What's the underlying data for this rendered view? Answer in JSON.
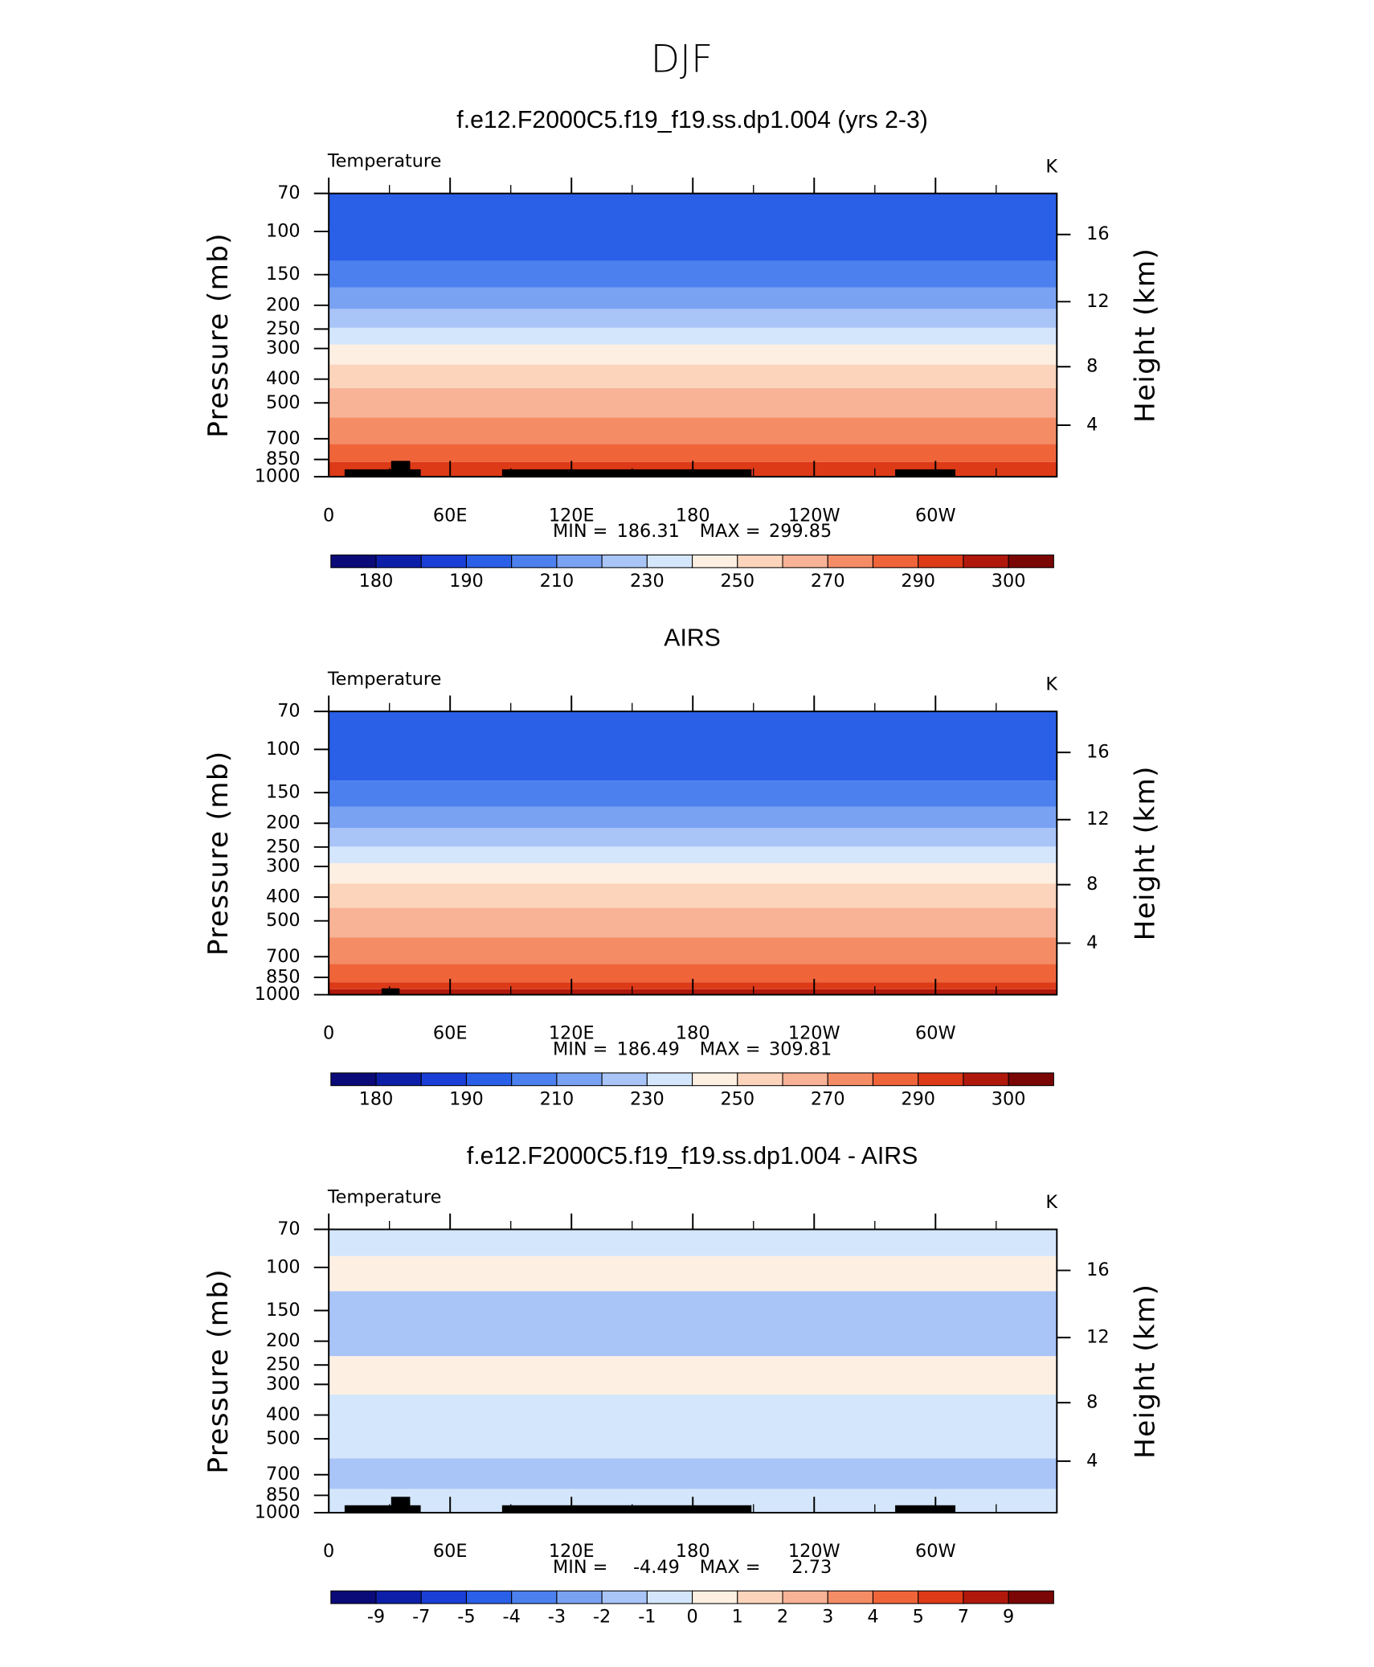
{
  "title": "DJF",
  "chart_data": [
    {
      "type": "contour",
      "title": "f.e12.F2000C5.f19_f19.ss.dp1.004 (yrs 2-3)",
      "label": "Temperature",
      "units": "K",
      "ylabel": "Pressure (mb)",
      "y2label": "Height (km)",
      "xlim": [
        0,
        360
      ],
      "xticks": [
        0,
        {
          "value": 60,
          "label": "60E"
        },
        {
          "value": 120,
          "label": "120E"
        },
        180,
        {
          "value": 240,
          "label": "120W"
        },
        {
          "value": 300,
          "label": "60W"
        }
      ],
      "ylim": [
        1000,
        70
      ],
      "log_y": true,
      "yticks": [
        70,
        100,
        150,
        200,
        250,
        300,
        400,
        500,
        700,
        850,
        1000
      ],
      "y2ticks": [
        4,
        8,
        12,
        16
      ],
      "min_label": "MIN =",
      "min": 186.31,
      "max_label": "MAX =",
      "max": 299.85,
      "colorbar_levels": [
        180,
        190,
        210,
        230,
        250,
        270,
        290,
        300
      ],
      "colorbar_colors": [
        "#0a0a78",
        "#0d1fa8",
        "#1a3fd6",
        "#2a5fe8",
        "#4c80ee",
        "#7aa2f3",
        "#a9c4f7",
        "#d4e6fb",
        "#fdf0e2",
        "#fbd4bb",
        "#f8b295",
        "#f48c66",
        "#f0643a",
        "#dd3a18",
        "#b0180c",
        "#7a0606"
      ],
      "bands": {
        "tops": [
          870,
          735,
          574,
          435,
          349,
          289,
          247,
          207,
          169,
          132,
          70
        ],
        "colors": [
          "#dd3a18",
          "#f0643a",
          "#f48c66",
          "#f8b295",
          "#fbd4bb",
          "#fdf0e2",
          "#d4e6fb",
          "#a9c4f7",
          "#7aa2f3",
          "#4c80ee",
          "#2a5fe8"
        ]
      }
    },
    {
      "type": "contour",
      "title": "AIRS",
      "label": "Temperature",
      "units": "K",
      "ylabel": "Pressure (mb)",
      "y2label": "Height (km)",
      "xlim": [
        0,
        360
      ],
      "xticks": [
        0,
        {
          "value": 60,
          "label": "60E"
        },
        {
          "value": 120,
          "label": "120E"
        },
        180,
        {
          "value": 240,
          "label": "120W"
        },
        {
          "value": 300,
          "label": "60W"
        }
      ],
      "ylim": [
        1000,
        70
      ],
      "log_y": true,
      "yticks": [
        70,
        100,
        150,
        200,
        250,
        300,
        400,
        500,
        700,
        850,
        1000
      ],
      "y2ticks": [
        4,
        8,
        12,
        16
      ],
      "min_label": "MIN =",
      "min": 186.49,
      "max_label": "MAX =",
      "max": 309.81,
      "colorbar_levels": [
        180,
        190,
        210,
        230,
        250,
        270,
        290,
        300
      ],
      "colorbar_colors": [
        "#0a0a78",
        "#0d1fa8",
        "#1a3fd6",
        "#2a5fe8",
        "#4c80ee",
        "#7aa2f3",
        "#a9c4f7",
        "#d4e6fb",
        "#fdf0e2",
        "#fbd4bb",
        "#f8b295",
        "#f48c66",
        "#f0643a",
        "#dd3a18",
        "#b0180c",
        "#7a0606"
      ],
      "bands": {
        "tops": [
          950,
          890,
          750,
          585,
          442,
          352,
          291,
          249,
          209,
          171,
          134,
          70
        ],
        "colors": [
          "#b0180c",
          "#dd3a18",
          "#f0643a",
          "#f48c66",
          "#f8b295",
          "#fbd4bb",
          "#fdf0e2",
          "#d4e6fb",
          "#a9c4f7",
          "#7aa2f3",
          "#4c80ee",
          "#2a5fe8"
        ]
      }
    },
    {
      "type": "contour",
      "title": "f.e12.F2000C5.f19_f19.ss.dp1.004 - AIRS",
      "label": "Temperature",
      "units": "K",
      "ylabel": "Pressure (mb)",
      "y2label": "Height (km)",
      "xlim": [
        0,
        360
      ],
      "xticks": [
        0,
        {
          "value": 60,
          "label": "60E"
        },
        {
          "value": 120,
          "label": "120E"
        },
        180,
        {
          "value": 240,
          "label": "120W"
        },
        {
          "value": 300,
          "label": "60W"
        }
      ],
      "ylim": [
        1000,
        70
      ],
      "log_y": true,
      "yticks": [
        70,
        100,
        150,
        200,
        250,
        300,
        400,
        500,
        700,
        850,
        1000
      ],
      "y2ticks": [
        4,
        8,
        12,
        16
      ],
      "min_label": "MIN =",
      "min": -4.49,
      "max_label": "MAX =",
      "max": 2.73,
      "colorbar_levels": [
        -9,
        -7,
        -5,
        -4,
        -3,
        -2,
        -1,
        0,
        1,
        2,
        3,
        4,
        5,
        7,
        9
      ],
      "colorbar_colors": [
        "#0a0a78",
        "#0d1fa8",
        "#1a3fd6",
        "#2a5fe8",
        "#4c80ee",
        "#7aa2f3",
        "#a9c4f7",
        "#d4e6fb",
        "#fdf0e2",
        "#fbd4bb",
        "#f8b295",
        "#f48c66",
        "#f0643a",
        "#dd3a18",
        "#b0180c",
        "#7a0606"
      ],
      "bands": {
        "tops": [
          800,
          600,
          330,
          230,
          125,
          90,
          70
        ],
        "colors": [
          "#d4e6fb",
          "#a9c4f7",
          "#d4e6fb",
          "#fdf0e2",
          "#a9c4f7",
          "#fdf0e2",
          "#d4e6fb"
        ]
      }
    }
  ]
}
